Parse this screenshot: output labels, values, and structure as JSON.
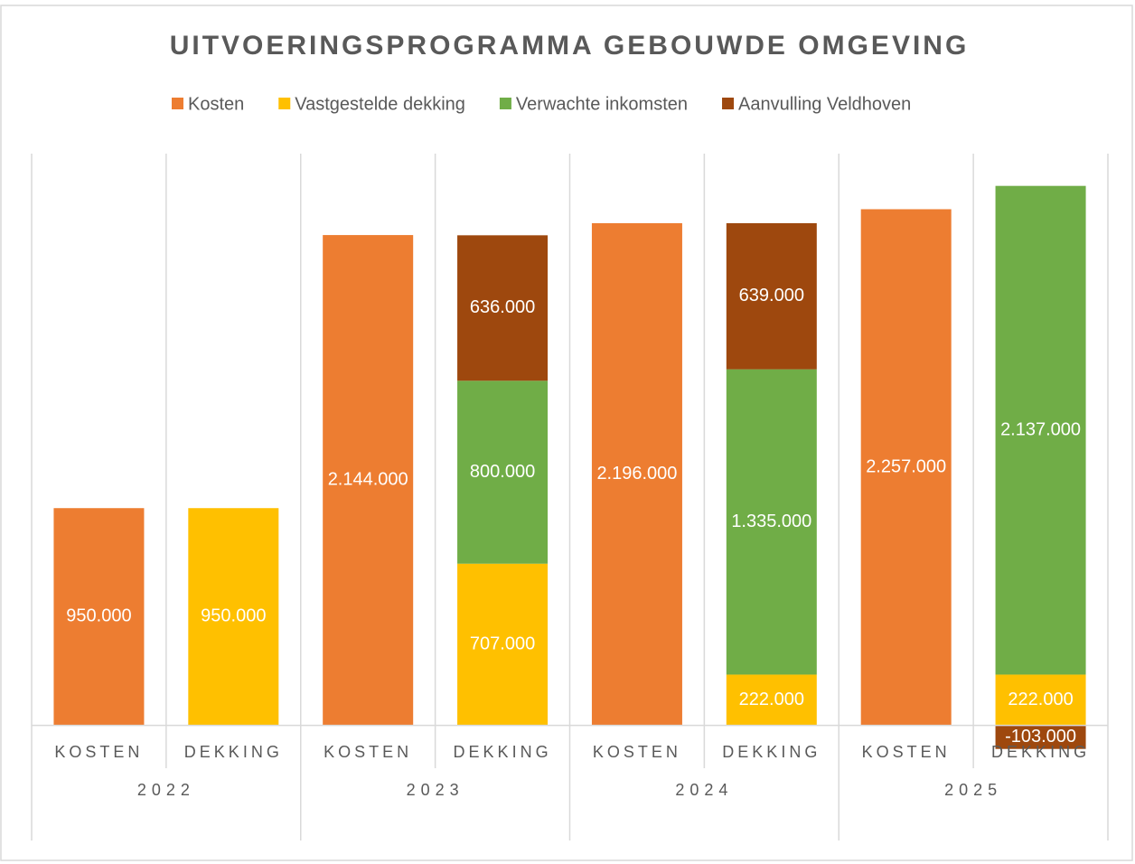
{
  "chart_data": {
    "type": "stacked_bar",
    "title": "UITVOERINGSPROGRAMMA GEBOUWDE OMGEVING",
    "categories": [
      "KOSTEN",
      "DEKKING",
      "KOSTEN",
      "DEKKING",
      "KOSTEN",
      "DEKKING",
      "KOSTEN",
      "DEKKING"
    ],
    "groups": [
      "2022",
      "2023",
      "2024",
      "2025"
    ],
    "series": [
      {
        "name": "Kosten",
        "color": "#ed7d31",
        "values": [
          950000,
          null,
          2144000,
          null,
          2196000,
          null,
          2257000,
          null
        ],
        "value_labels": [
          "950.000",
          null,
          "2.144.000",
          null,
          "2.196.000",
          null,
          "2.257.000",
          null
        ]
      },
      {
        "name": "Vastgestelde dekking",
        "color": "#ffc000",
        "values": [
          null,
          950000,
          null,
          707000,
          null,
          222000,
          null,
          222000
        ],
        "value_labels": [
          null,
          "950.000",
          null,
          "707.000",
          null,
          "222.000",
          null,
          "222.000"
        ]
      },
      {
        "name": "Verwachte inkomsten",
        "color": "#70ad47",
        "values": [
          null,
          null,
          null,
          800000,
          null,
          1335000,
          null,
          2137000
        ],
        "value_labels": [
          null,
          null,
          null,
          "800.000",
          null,
          "1.335.000",
          null,
          "2.137.000"
        ]
      },
      {
        "name": "Aanvulling Veldhoven",
        "color": "#9e480e",
        "values": [
          null,
          null,
          null,
          636000,
          null,
          639000,
          null,
          -103000
        ],
        "value_labels": [
          null,
          null,
          null,
          "636.000",
          null,
          "639.000",
          null,
          "-103.000"
        ]
      }
    ],
    "ylim": [
      -120000,
      2500000
    ],
    "legend": "top"
  }
}
